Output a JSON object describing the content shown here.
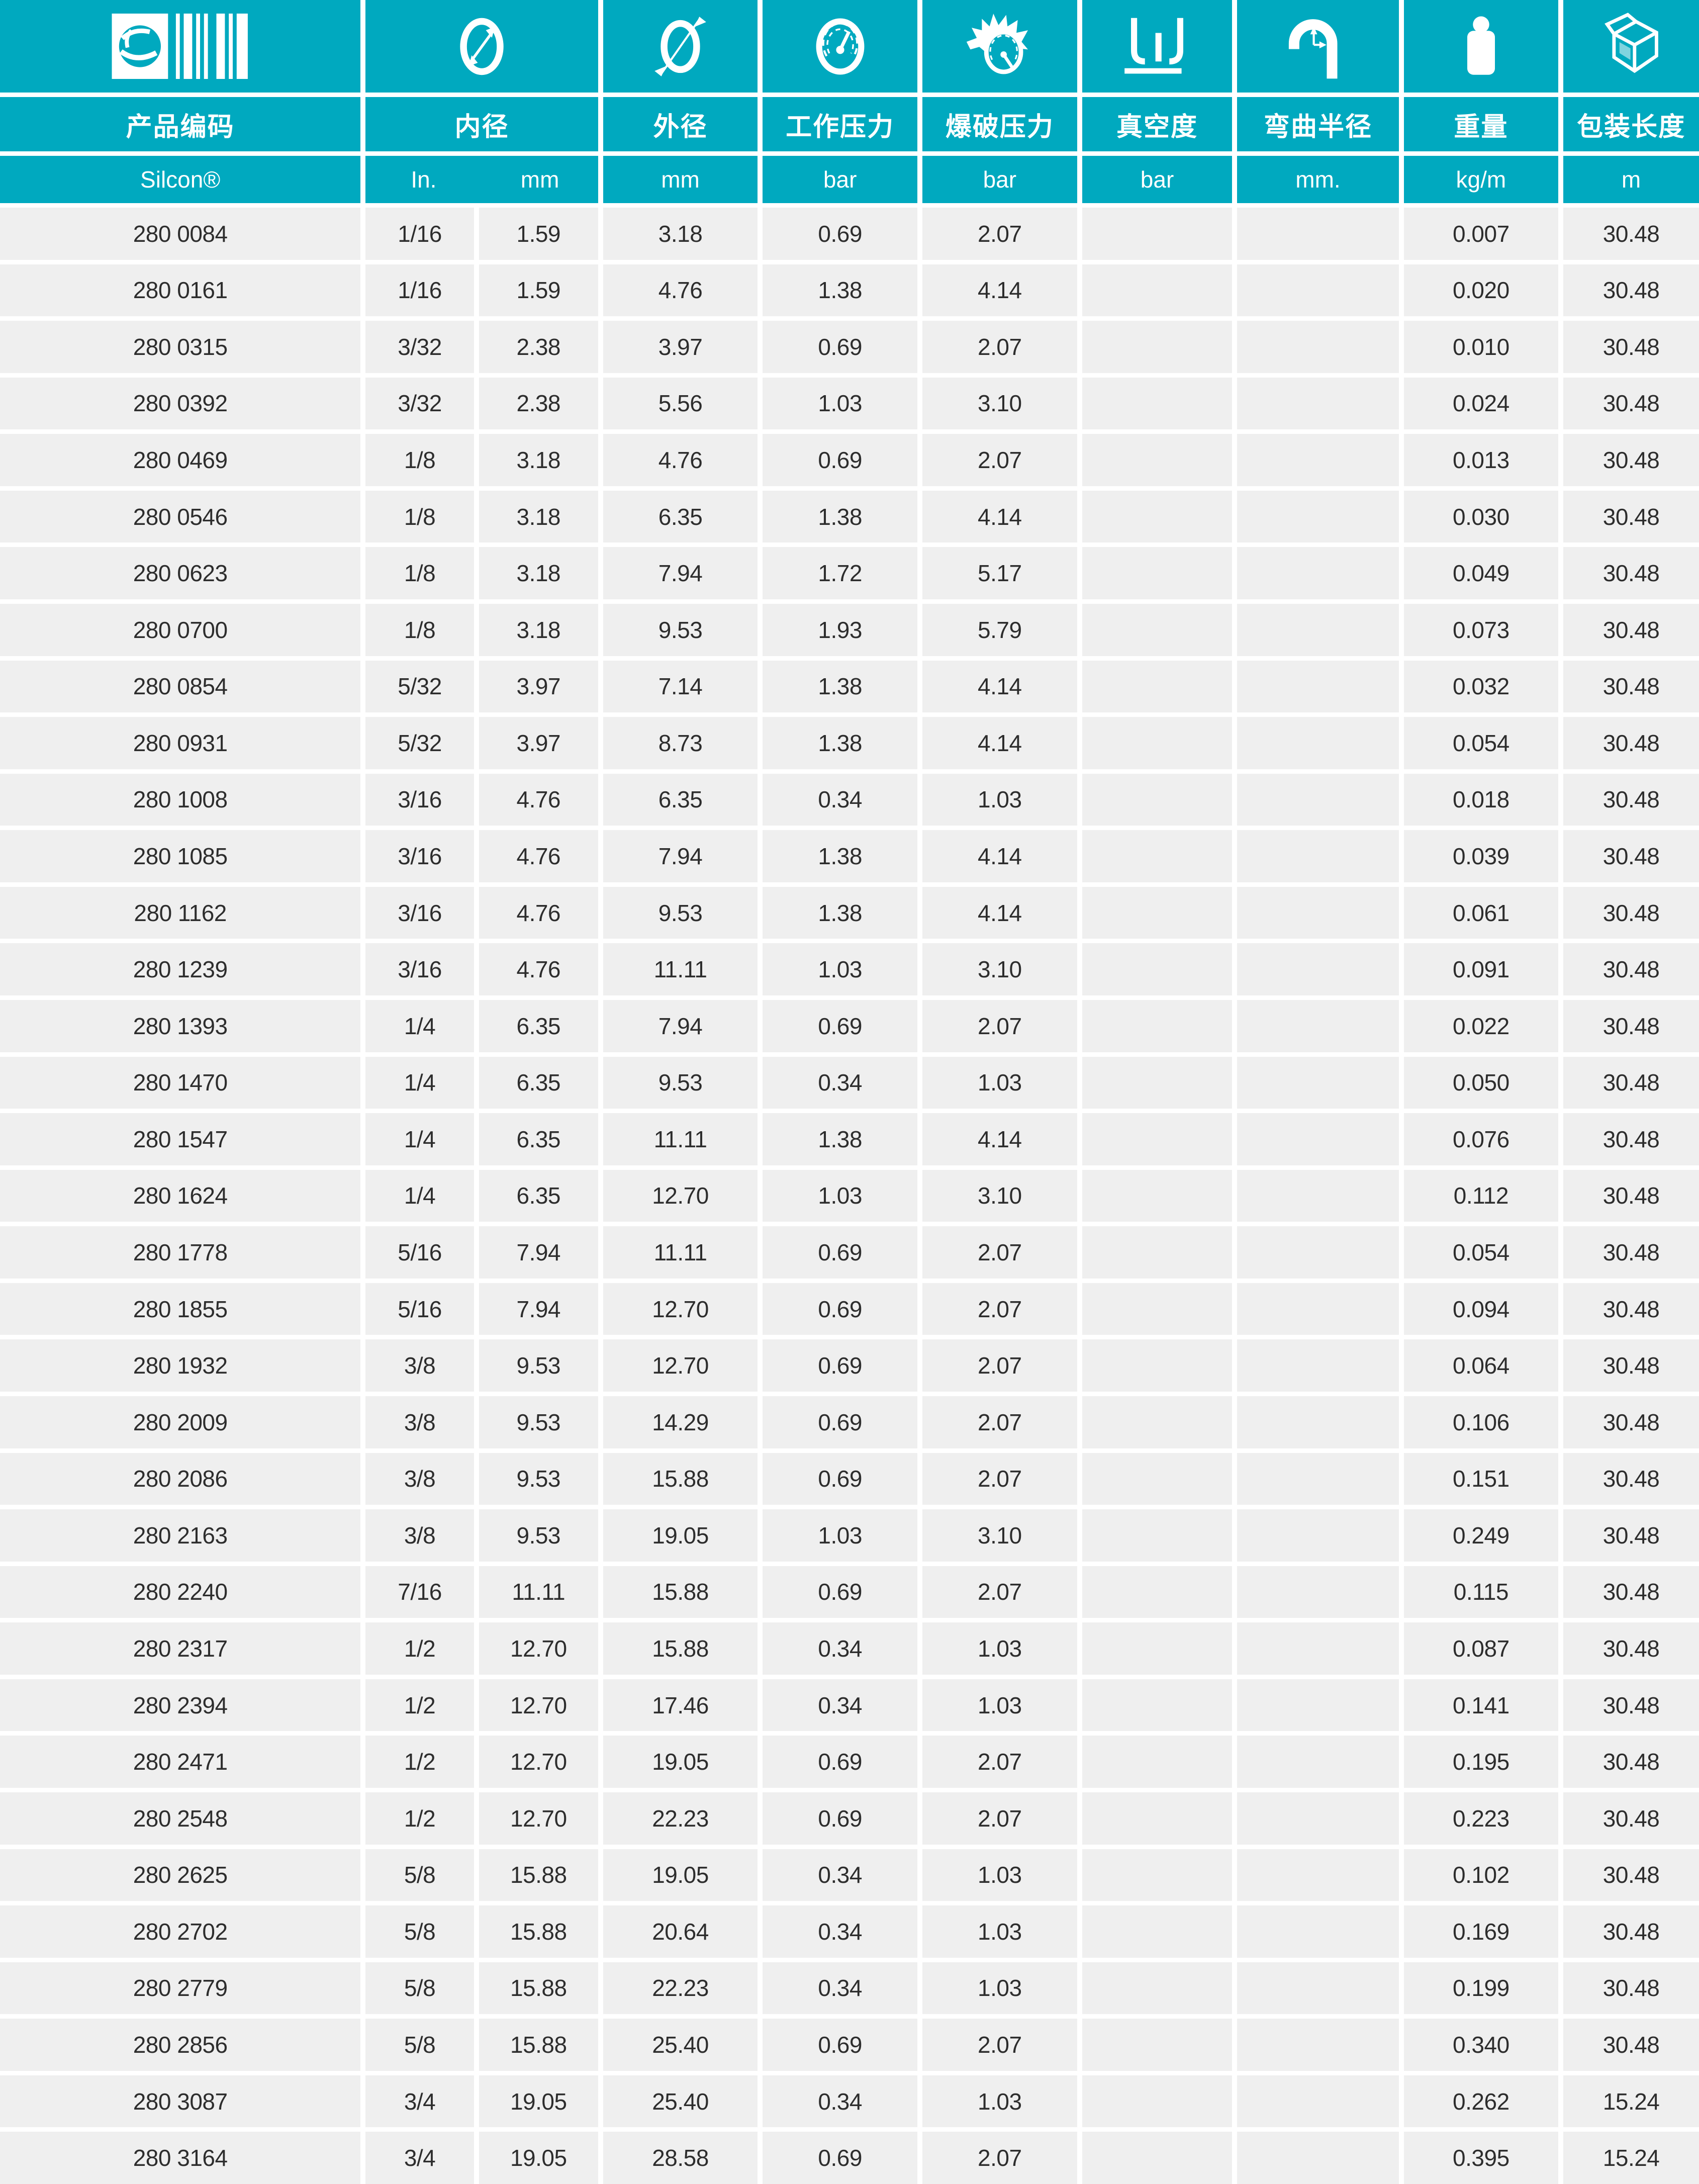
{
  "theme": {
    "accent": "#00a9bf",
    "row_background": "#efefef",
    "text_dark": "#2d2d2d",
    "divider": "#ffffff"
  },
  "table": {
    "columns": [
      {
        "label": "产品编码",
        "icon": "barcode-icon",
        "unit": "Silcon®"
      },
      {
        "label": "内径",
        "icon": "inner-diameter-icon",
        "units": [
          "In.",
          "mm"
        ]
      },
      {
        "label": "外径",
        "icon": "outer-diameter-icon",
        "unit": "mm"
      },
      {
        "label": "工作压力",
        "icon": "working-pressure-icon",
        "unit": "bar"
      },
      {
        "label": "爆破压力",
        "icon": "burst-pressure-icon",
        "unit": "bar"
      },
      {
        "label": "真空度",
        "icon": "vacuum-icon",
        "unit": "bar"
      },
      {
        "label": "弯曲半径",
        "icon": "bend-radius-icon",
        "unit": "mm."
      },
      {
        "label": "重量",
        "icon": "weight-icon",
        "unit": "kg/m"
      },
      {
        "label": "包装长度",
        "icon": "package-length-icon",
        "unit": "m"
      }
    ]
  },
  "rows": [
    [
      "280 0084",
      "1/16",
      "1.59",
      "3.18",
      "0.69",
      "2.07",
      "",
      "",
      "0.007",
      "30.48"
    ],
    [
      "280 0161",
      "1/16",
      "1.59",
      "4.76",
      "1.38",
      "4.14",
      "",
      "",
      "0.020",
      "30.48"
    ],
    [
      "280 0315",
      "3/32",
      "2.38",
      "3.97",
      "0.69",
      "2.07",
      "",
      "",
      "0.010",
      "30.48"
    ],
    [
      "280 0392",
      "3/32",
      "2.38",
      "5.56",
      "1.03",
      "3.10",
      "",
      "",
      "0.024",
      "30.48"
    ],
    [
      "280 0469",
      "1/8",
      "3.18",
      "4.76",
      "0.69",
      "2.07",
      "",
      "",
      "0.013",
      "30.48"
    ],
    [
      "280 0546",
      "1/8",
      "3.18",
      "6.35",
      "1.38",
      "4.14",
      "",
      "",
      "0.030",
      "30.48"
    ],
    [
      "280 0623",
      "1/8",
      "3.18",
      "7.94",
      "1.72",
      "5.17",
      "",
      "",
      "0.049",
      "30.48"
    ],
    [
      "280 0700",
      "1/8",
      "3.18",
      "9.53",
      "1.93",
      "5.79",
      "",
      "",
      "0.073",
      "30.48"
    ],
    [
      "280 0854",
      "5/32",
      "3.97",
      "7.14",
      "1.38",
      "4.14",
      "",
      "",
      "0.032",
      "30.48"
    ],
    [
      "280 0931",
      "5/32",
      "3.97",
      "8.73",
      "1.38",
      "4.14",
      "",
      "",
      "0.054",
      "30.48"
    ],
    [
      "280 1008",
      "3/16",
      "4.76",
      "6.35",
      "0.34",
      "1.03",
      "",
      "",
      "0.018",
      "30.48"
    ],
    [
      "280 1085",
      "3/16",
      "4.76",
      "7.94",
      "1.38",
      "4.14",
      "",
      "",
      "0.039",
      "30.48"
    ],
    [
      "280 1162",
      "3/16",
      "4.76",
      "9.53",
      "1.38",
      "4.14",
      "",
      "",
      "0.061",
      "30.48"
    ],
    [
      "280 1239",
      "3/16",
      "4.76",
      "11.11",
      "1.03",
      "3.10",
      "",
      "",
      "0.091",
      "30.48"
    ],
    [
      "280 1393",
      "1/4",
      "6.35",
      "7.94",
      "0.69",
      "2.07",
      "",
      "",
      "0.022",
      "30.48"
    ],
    [
      "280 1470",
      "1/4",
      "6.35",
      "9.53",
      "0.34",
      "1.03",
      "",
      "",
      "0.050",
      "30.48"
    ],
    [
      "280 1547",
      "1/4",
      "6.35",
      "11.11",
      "1.38",
      "4.14",
      "",
      "",
      "0.076",
      "30.48"
    ],
    [
      "280 1624",
      "1/4",
      "6.35",
      "12.70",
      "1.03",
      "3.10",
      "",
      "",
      "0.112",
      "30.48"
    ],
    [
      "280 1778",
      "5/16",
      "7.94",
      "11.11",
      "0.69",
      "2.07",
      "",
      "",
      "0.054",
      "30.48"
    ],
    [
      "280 1855",
      "5/16",
      "7.94",
      "12.70",
      "0.69",
      "2.07",
      "",
      "",
      "0.094",
      "30.48"
    ],
    [
      "280 1932",
      "3/8",
      "9.53",
      "12.70",
      "0.69",
      "2.07",
      "",
      "",
      "0.064",
      "30.48"
    ],
    [
      "280 2009",
      "3/8",
      "9.53",
      "14.29",
      "0.69",
      "2.07",
      "",
      "",
      "0.106",
      "30.48"
    ],
    [
      "280 2086",
      "3/8",
      "9.53",
      "15.88",
      "0.69",
      "2.07",
      "",
      "",
      "0.151",
      "30.48"
    ],
    [
      "280 2163",
      "3/8",
      "9.53",
      "19.05",
      "1.03",
      "3.10",
      "",
      "",
      "0.249",
      "30.48"
    ],
    [
      "280 2240",
      "7/16",
      "11.11",
      "15.88",
      "0.69",
      "2.07",
      "",
      "",
      "0.115",
      "30.48"
    ],
    [
      "280 2317",
      "1/2",
      "12.70",
      "15.88",
      "0.34",
      "1.03",
      "",
      "",
      "0.087",
      "30.48"
    ],
    [
      "280 2394",
      "1/2",
      "12.70",
      "17.46",
      "0.34",
      "1.03",
      "",
      "",
      "0.141",
      "30.48"
    ],
    [
      "280 2471",
      "1/2",
      "12.70",
      "19.05",
      "0.69",
      "2.07",
      "",
      "",
      "0.195",
      "30.48"
    ],
    [
      "280 2548",
      "1/2",
      "12.70",
      "22.23",
      "0.69",
      "2.07",
      "",
      "",
      "0.223",
      "30.48"
    ],
    [
      "280 2625",
      "5/8",
      "15.88",
      "19.05",
      "0.34",
      "1.03",
      "",
      "",
      "0.102",
      "30.48"
    ],
    [
      "280 2702",
      "5/8",
      "15.88",
      "20.64",
      "0.34",
      "1.03",
      "",
      "",
      "0.169",
      "30.48"
    ],
    [
      "280 2779",
      "5/8",
      "15.88",
      "22.23",
      "0.34",
      "1.03",
      "",
      "",
      "0.199",
      "30.48"
    ],
    [
      "280 2856",
      "5/8",
      "15.88",
      "25.40",
      "0.69",
      "2.07",
      "",
      "",
      "0.340",
      "30.48"
    ],
    [
      "280 3087",
      "3/4",
      "19.05",
      "25.40",
      "0.34",
      "1.03",
      "",
      "",
      "0.262",
      "15.24"
    ],
    [
      "280 3164",
      "3/4",
      "19.05",
      "28.58",
      "0.69",
      "2.07",
      "",
      "",
      "0.395",
      "15.24"
    ]
  ]
}
